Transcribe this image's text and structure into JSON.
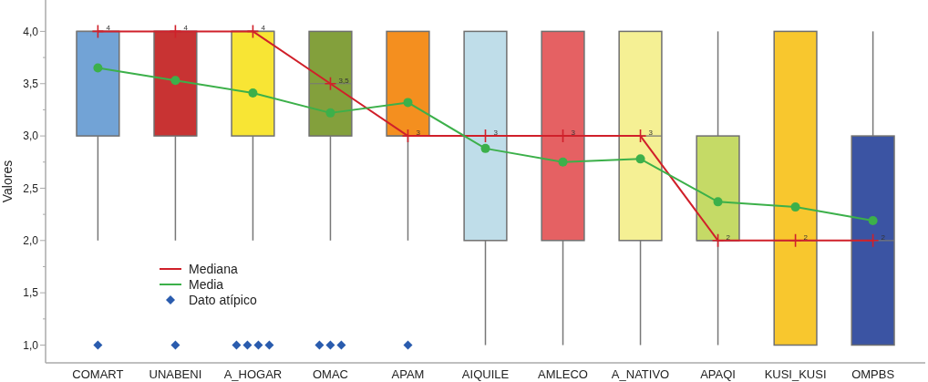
{
  "chart_data": {
    "type": "box",
    "ylabel": "Valores",
    "categories": [
      "COMART",
      "UNABENI",
      "A_HOGAR",
      "OMAC",
      "APAM",
      "AIQUILE",
      "AMLECO",
      "A_NATIVO",
      "APAQI",
      "KUSI_KUSI",
      "OMPBS"
    ],
    "colors": [
      "#72a3d6",
      "#c83333",
      "#f8e534",
      "#83a03c",
      "#f48f1f",
      "#bfdde9",
      "#e56163",
      "#f5f094",
      "#c5da66",
      "#f8c72e",
      "#3b54a3"
    ],
    "boxes": [
      {
        "low": 2,
        "q1": 3,
        "median": 4,
        "q3": 4,
        "high": 4
      },
      {
        "low": 2,
        "q1": 3,
        "median": 4,
        "q3": 4,
        "high": 4
      },
      {
        "low": 2,
        "q1": 3,
        "median": 4,
        "q3": 4,
        "high": 4
      },
      {
        "low": 2,
        "q1": 3,
        "median": 3.5,
        "q3": 4,
        "high": 4
      },
      {
        "low": 2,
        "q1": 3,
        "median": 3,
        "q3": 4,
        "high": 4
      },
      {
        "low": 1,
        "q1": 2,
        "median": 3,
        "q3": 4,
        "high": 4
      },
      {
        "low": 1,
        "q1": 2,
        "median": 3,
        "q3": 4,
        "high": 4
      },
      {
        "low": 1,
        "q1": 2,
        "median": 3,
        "q3": 4,
        "high": 4
      },
      {
        "low": 1,
        "q1": 2,
        "median": 2,
        "q3": 3,
        "high": 4
      },
      {
        "low": 1,
        "q1": 1,
        "median": 2,
        "q3": 4,
        "high": 4
      },
      {
        "low": 1,
        "q1": 1,
        "median": 2,
        "q3": 3,
        "high": 4
      }
    ],
    "series": [
      {
        "name": "Mediana",
        "type": "line",
        "color": "#d0202a",
        "marker": "cross",
        "values": [
          4,
          4,
          4,
          3.5,
          3,
          3,
          3,
          3,
          2,
          2,
          2
        ],
        "value_labels": [
          "4",
          "4",
          "4",
          "3,5",
          "3",
          "3",
          "3",
          "3",
          "2",
          "2",
          "2"
        ]
      },
      {
        "name": "Media",
        "type": "line",
        "color": "#3cb04a",
        "marker": "circle",
        "values": [
          3.65,
          3.53,
          3.41,
          3.22,
          3.32,
          2.88,
          2.75,
          2.78,
          2.37,
          2.32,
          2.19
        ]
      },
      {
        "name": "Dato atípico",
        "type": "scatter",
        "color": "#2a5cae",
        "marker": "diamond",
        "x": [
          "COMART",
          "UNABENI",
          "A_HOGAR",
          "A_HOGAR",
          "A_HOGAR",
          "A_HOGAR",
          "OMAC",
          "OMAC",
          "OMAC",
          "APAM"
        ],
        "values": [
          1,
          1,
          1,
          1,
          1,
          1,
          1,
          1,
          1,
          1
        ]
      }
    ],
    "ylim": [
      0.83,
      4.3
    ],
    "yticks": [
      {
        "value": 1,
        "label": "1,0"
      },
      {
        "value": 1.5,
        "label": "1,5"
      },
      {
        "value": 2,
        "label": "2,0"
      },
      {
        "value": 2.5,
        "label": "2,5"
      },
      {
        "value": 3,
        "label": "3,0"
      },
      {
        "value": 3.5,
        "label": "3,5"
      },
      {
        "value": 4,
        "label": "4,0"
      }
    ],
    "grid": false,
    "legend": "bottom left"
  }
}
